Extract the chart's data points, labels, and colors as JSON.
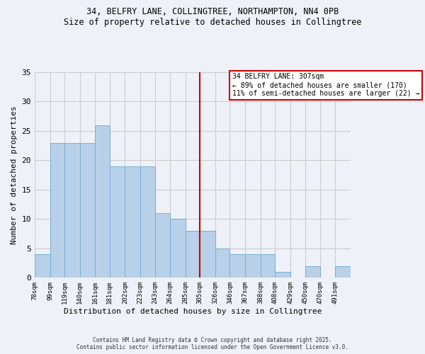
{
  "title_line1": "34, BELFRY LANE, COLLINGTREE, NORTHAMPTON, NN4 0PB",
  "title_line2": "Size of property relative to detached houses in Collingtree",
  "xlabel": "Distribution of detached houses by size in Collingtree",
  "ylabel": "Number of detached properties",
  "bin_labels": [
    "78sqm",
    "99sqm",
    "119sqm",
    "140sqm",
    "161sqm",
    "181sqm",
    "202sqm",
    "223sqm",
    "243sqm",
    "264sqm",
    "285sqm",
    "305sqm",
    "326sqm",
    "346sqm",
    "367sqm",
    "388sqm",
    "408sqm",
    "429sqm",
    "450sqm",
    "470sqm",
    "491sqm"
  ],
  "bin_edges": [
    78,
    99,
    119,
    140,
    161,
    181,
    202,
    223,
    243,
    264,
    285,
    305,
    326,
    346,
    367,
    388,
    408,
    429,
    450,
    470,
    491,
    512
  ],
  "counts": [
    4,
    23,
    23,
    23,
    26,
    19,
    19,
    19,
    11,
    10,
    8,
    8,
    5,
    4,
    4,
    4,
    1,
    0,
    2,
    0,
    2
  ],
  "bar_color": "#b8d0e8",
  "bar_edge_color": "#7aafd4",
  "vline_x": 305,
  "vline_color": "#cc0000",
  "annotation_title": "34 BELFRY LANE: 307sqm",
  "annotation_line2": "← 89% of detached houses are smaller (170)",
  "annotation_line3": "11% of semi-detached houses are larger (22) →",
  "annotation_box_color": "#ffffff",
  "annotation_box_edge": "#cc0000",
  "ylim": [
    0,
    35
  ],
  "yticks": [
    0,
    5,
    10,
    15,
    20,
    25,
    30,
    35
  ],
  "grid_color": "#cccccc",
  "background_color": "#eef2f8",
  "footer_line1": "Contains HM Land Registry data © Crown copyright and database right 2025.",
  "footer_line2": "Contains public sector information licensed under the Open Government Licence v3.0."
}
